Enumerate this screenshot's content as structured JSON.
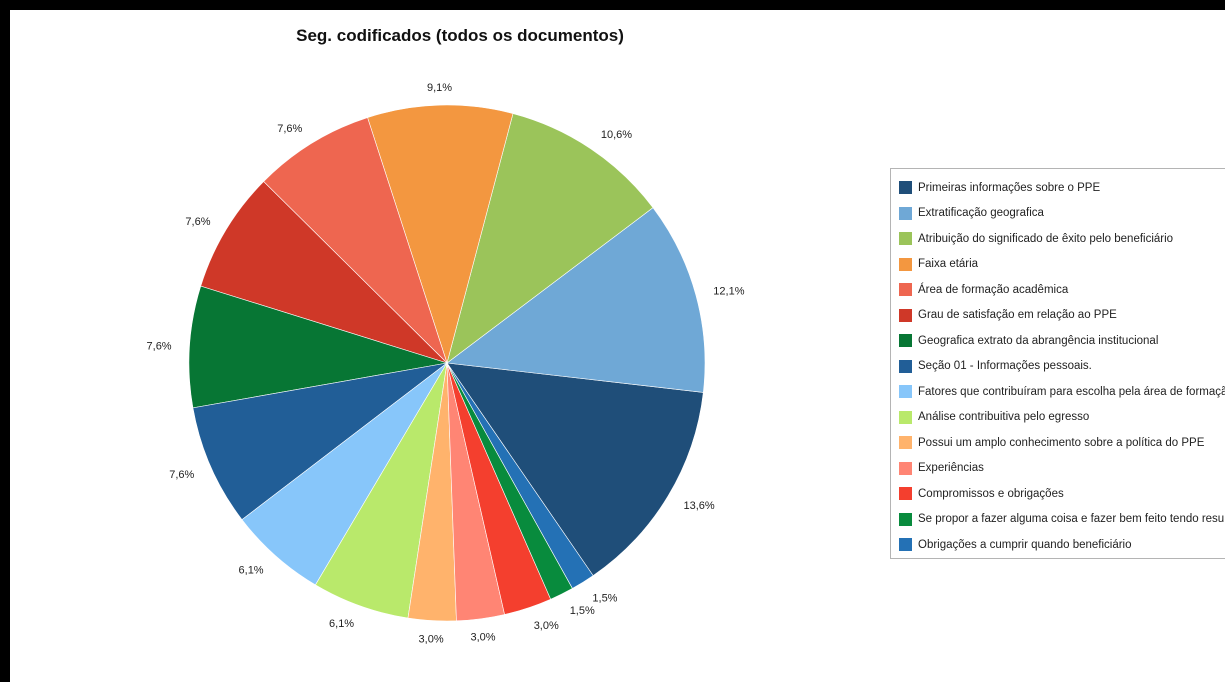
{
  "chart_data": {
    "type": "pie",
    "title": "Seg. codificados (todos os documentos)",
    "legend_position": "right",
    "slices": [
      {
        "label": "Primeiras informações sobre o PPE",
        "value": 13.6,
        "display": "13,6%",
        "color": "#1f4e79"
      },
      {
        "label": "Extratificação geografica",
        "value": 12.1,
        "display": "12,1%",
        "color": "#6fa8d6"
      },
      {
        "label": "Atribuição do significado de êxito pelo beneficiário",
        "value": 10.6,
        "display": "10,6%",
        "color": "#9bc45a"
      },
      {
        "label": "Faixa etária",
        "value": 9.1,
        "display": "9,1%",
        "color": "#f39740"
      },
      {
        "label": "Área de formação acadêmica",
        "value": 7.6,
        "display": "7,6%",
        "color": "#ee6650"
      },
      {
        "label": "Grau de satisfação em relação ao PPE",
        "value": 7.6,
        "display": "7,6%",
        "color": "#cf3828"
      },
      {
        "label": "Geografica extrato da abrangência institucional",
        "value": 7.6,
        "display": "7,6%",
        "color": "#077634"
      },
      {
        "label": "Seção 01 - Informações pessoais.",
        "value": 7.6,
        "display": "7,6%",
        "color": "#215e97"
      },
      {
        "label": "Fatores que contribuíram para escolha pela área de formação",
        "value": 6.1,
        "display": "6,1%",
        "color": "#87c6fa"
      },
      {
        "label": "Análise contribuitiva pelo egresso",
        "value": 6.1,
        "display": "6,1%",
        "color": "#b9e96b"
      },
      {
        "label": "Possui um amplo conhecimento sobre a política do PPE",
        "value": 3.0,
        "display": "3,0%",
        "color": "#ffb36c"
      },
      {
        "label": "Experiências",
        "value": 3.0,
        "display": "3,0%",
        "color": "#ff8574"
      },
      {
        "label": "Compromissos e obrigações",
        "value": 3.0,
        "display": "3,0%",
        "color": "#f43f2e"
      },
      {
        "label": "Se propor a fazer alguma coisa e fazer bem feito tendo resultad",
        "value": 1.5,
        "display": "1,5%",
        "color": "#088b3d"
      },
      {
        "label": "Obrigações a cumprir quando beneficiário",
        "value": 1.5,
        "display": "1,5%",
        "color": "#2471b5"
      }
    ]
  }
}
